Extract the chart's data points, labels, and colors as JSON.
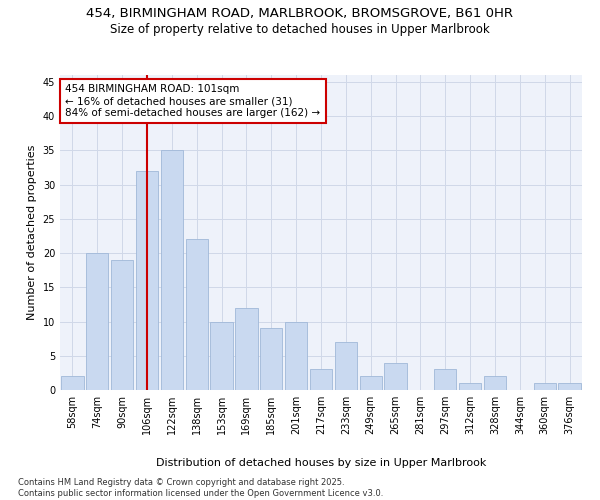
{
  "title_line1": "454, BIRMINGHAM ROAD, MARLBROOK, BROMSGROVE, B61 0HR",
  "title_line2": "Size of property relative to detached houses in Upper Marlbrook",
  "xlabel": "Distribution of detached houses by size in Upper Marlbrook",
  "ylabel": "Number of detached properties",
  "categories": [
    "58sqm",
    "74sqm",
    "90sqm",
    "106sqm",
    "122sqm",
    "138sqm",
    "153sqm",
    "169sqm",
    "185sqm",
    "201sqm",
    "217sqm",
    "233sqm",
    "249sqm",
    "265sqm",
    "281sqm",
    "297sqm",
    "312sqm",
    "328sqm",
    "344sqm",
    "360sqm",
    "376sqm"
  ],
  "values": [
    2,
    20,
    19,
    32,
    35,
    22,
    10,
    12,
    9,
    10,
    3,
    7,
    2,
    4,
    0,
    3,
    1,
    2,
    0,
    1,
    1
  ],
  "bar_color": "#c9d9f0",
  "bar_edge_color": "#a0b8d8",
  "vline_color": "#cc0000",
  "vline_x": 3.0,
  "annotation_text": "454 BIRMINGHAM ROAD: 101sqm\n← 16% of detached houses are smaller (31)\n84% of semi-detached houses are larger (162) →",
  "annotation_box_color": "#ffffff",
  "annotation_box_edge": "#cc0000",
  "ylim": [
    0,
    46
  ],
  "yticks": [
    0,
    5,
    10,
    15,
    20,
    25,
    30,
    35,
    40,
    45
  ],
  "grid_color": "#d0d8e8",
  "bg_color": "#eef2fa",
  "footer_text": "Contains HM Land Registry data © Crown copyright and database right 2025.\nContains public sector information licensed under the Open Government Licence v3.0.",
  "title_fontsize": 9.5,
  "subtitle_fontsize": 8.5,
  "axis_label_fontsize": 8,
  "tick_fontsize": 7,
  "annotation_fontsize": 7.5,
  "footer_fontsize": 6.0
}
